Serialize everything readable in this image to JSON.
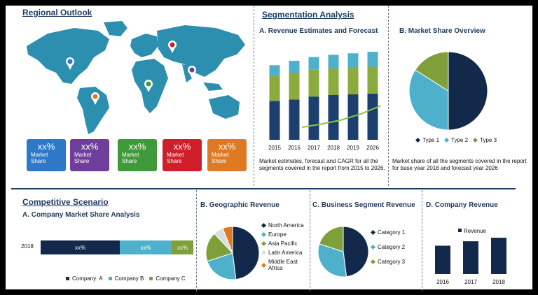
{
  "sections": {
    "regional_title": "Regional Outlook",
    "segmentation_title": "Segmentation Analysis",
    "competitive_title": "Competitive Scenario"
  },
  "regional": {
    "cards": [
      {
        "value": "xx%",
        "label_line1": "Market",
        "label_line2": "Share",
        "color": "#2e78c8"
      },
      {
        "value": "xx%",
        "label_line1": "Market",
        "label_line2": "Share",
        "color": "#6f3d9a"
      },
      {
        "value": "xx%",
        "label_line1": "Market",
        "label_line2": "Share",
        "color": "#3f9a3a"
      },
      {
        "value": "xx%",
        "label_line1": "Market",
        "label_line2": "Share",
        "color": "#cf1f2a"
      },
      {
        "value": "xx%",
        "label_line1": "Market",
        "label_line2": "Share",
        "color": "#e07a22"
      }
    ],
    "map_color": "#2c8fb0",
    "pin_icons": [
      "map-pin-icon",
      "map-pin-icon",
      "map-pin-icon",
      "map-pin-icon",
      "map-pin-icon"
    ]
  },
  "revenue_forecast": {
    "subtitle": "A. Revenue Estimates and Forecast",
    "caption": "Market estimates, forecast and CAGR for all the segments covered in the report from 2015 to 2026."
  },
  "market_share": {
    "subtitle": "B. Market Share Overview",
    "caption": "Market share of all the segments covered in the report for base year 2018 and forecast year 2026"
  },
  "company_share": {
    "subtitle": "A. Company Market Share Analysis"
  },
  "geographic": {
    "subtitle": "B. Geographic Revenue"
  },
  "business_segment": {
    "subtitle": "C. Business Segment Revenue"
  },
  "company_revenue": {
    "subtitle": "D. Company Revenue"
  },
  "chart_data": [
    {
      "type": "bar",
      "categories": [
        "2015",
        "2016",
        "2017",
        "2018",
        "2019",
        "2026"
      ],
      "series": [
        {
          "values": [
            52,
            54,
            58,
            60,
            61,
            62
          ],
          "color": "#1c3f6e"
        },
        {
          "values": [
            34,
            36,
            36,
            36,
            36,
            36
          ],
          "color": "#8bab3f"
        },
        {
          "values": [
            14,
            16,
            17,
            18,
            19,
            20
          ],
          "color": "#4fb0cc"
        }
      ],
      "trend": [
        0,
        4,
        9,
        15,
        24,
        36
      ],
      "trend_color": "#8bc34a",
      "ylim": [
        0,
        120
      ],
      "title": "A. Revenue Estimates and Forecast"
    },
    {
      "type": "pie",
      "labels": [
        "Type 1",
        "Type 2",
        "Type 3"
      ],
      "values": [
        50,
        34,
        16
      ],
      "colors": [
        "#13294b",
        "#4fb0cc",
        "#7e9f3a"
      ],
      "title": "B. Market Share Overview"
    },
    {
      "type": "bar",
      "orientation": "horizontal",
      "categories": [
        "2018"
      ],
      "series": [
        {
          "name": "Company  A",
          "values": [
            55
          ],
          "label": "xx%",
          "color": "#13294b"
        },
        {
          "name": "Company B",
          "values": [
            36
          ],
          "label": "xx%",
          "color": "#4fb0cc"
        },
        {
          "name": "Company C",
          "values": [
            15
          ],
          "label": "xx%",
          "color": "#7e9f3a"
        }
      ],
      "title": "A. Company Market Share Analysis"
    },
    {
      "type": "pie",
      "labels": [
        "North America",
        "Europe",
        "Asia Pacific",
        "Latin America",
        "Middle East Africa"
      ],
      "legend_lines": [
        [
          "North America"
        ],
        [
          "Europe"
        ],
        [
          "Asia Pacific"
        ],
        [
          "Latin America"
        ],
        [
          "Middle East",
          "Africa"
        ]
      ],
      "values": [
        48,
        22,
        18,
        6,
        6
      ],
      "colors": [
        "#13294b",
        "#4fb0cc",
        "#7e9f3a",
        "#d9dde2",
        "#e07a22"
      ],
      "title": "B. Geographic Revenue"
    },
    {
      "type": "pie",
      "labels": [
        "Category 1",
        "Category 2",
        "Category 3"
      ],
      "values": [
        48,
        32,
        20
      ],
      "colors": [
        "#13294b",
        "#4fb0cc",
        "#7e9f3a"
      ],
      "title": "C. Business Segment Revenue"
    },
    {
      "type": "bar",
      "categories": [
        "2016",
        "2017",
        "2018"
      ],
      "series": [
        {
          "name": "Revenue",
          "values": [
            32,
            37,
            41
          ],
          "color": "#13294b"
        }
      ],
      "ylim": [
        0,
        60
      ],
      "title": "D. Company Revenue"
    }
  ]
}
